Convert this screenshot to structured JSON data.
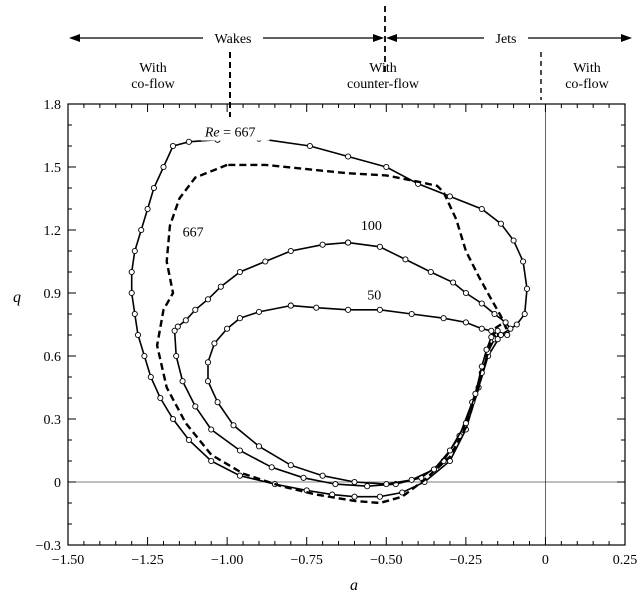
{
  "chart_data": {
    "type": "line",
    "xlabel": "a",
    "ylabel": "q",
    "xlim": [
      -1.5,
      0.25
    ],
    "ylim": [
      -0.3,
      1.8
    ],
    "xticks": [
      "−1.50",
      "−1.25",
      "−1.00",
      "−0.75",
      "−0.50",
      "−0.25",
      "0",
      "0.25"
    ],
    "yticks": [
      "−0.3",
      "0",
      "0.3",
      "0.6",
      "0.9",
      "1.2",
      "1.5",
      "1.8"
    ],
    "x_tick_values": [
      -1.5,
      -1.25,
      -1.0,
      -0.75,
      -0.5,
      -0.25,
      0,
      0.25
    ],
    "y_tick_values": [
      -0.3,
      0,
      0.3,
      0.6,
      0.9,
      1.2,
      1.5,
      1.8
    ],
    "reference_lines": {
      "x": 0,
      "y": 0
    },
    "regions": {
      "wakes": "Wakes",
      "jets": "Jets",
      "left": [
        "With",
        "co-flow"
      ],
      "middle": [
        "With",
        "counter-flow"
      ],
      "right": [
        "With",
        "co-flow"
      ]
    },
    "region_bounds": {
      "wakes": [
        -1.5,
        -0.5
      ],
      "jets": [
        -0.5,
        0.25
      ],
      "left_divider": -1.0,
      "jets_divider": -0.5,
      "right_divider": 0
    },
    "annotations": [
      {
        "text": "Re = 667",
        "x": -1.07,
        "y": 1.645
      },
      {
        "text": "667",
        "x": -1.14,
        "y": 1.17
      },
      {
        "text": "100",
        "x": -0.58,
        "y": 1.2
      },
      {
        "text": "50",
        "x": -0.56,
        "y": 0.87
      }
    ],
    "series": [
      {
        "style": "solid-markers",
        "points": [
          [
            -1.03,
            1.63
          ],
          [
            -1.12,
            1.62
          ],
          [
            -1.17,
            1.6
          ],
          [
            -1.2,
            1.5
          ],
          [
            -1.23,
            1.4
          ],
          [
            -1.25,
            1.3
          ],
          [
            -1.27,
            1.2
          ],
          [
            -1.29,
            1.1
          ],
          [
            -1.3,
            1.0
          ],
          [
            -1.3,
            0.9
          ],
          [
            -1.29,
            0.8
          ],
          [
            -1.28,
            0.7
          ],
          [
            -1.26,
            0.6
          ],
          [
            -1.24,
            0.5
          ],
          [
            -1.21,
            0.4
          ],
          [
            -1.17,
            0.3
          ],
          [
            -1.12,
            0.2
          ],
          [
            -1.05,
            0.1
          ],
          [
            -0.96,
            0.03
          ],
          [
            -0.85,
            -0.01
          ],
          [
            -0.75,
            -0.04
          ],
          [
            -0.67,
            -0.06
          ],
          [
            -0.6,
            -0.07
          ],
          [
            -0.52,
            -0.07
          ],
          [
            -0.45,
            -0.05
          ],
          [
            -0.38,
            0.0
          ],
          [
            -0.3,
            0.1
          ],
          [
            -0.25,
            0.25
          ],
          [
            -0.21,
            0.45
          ],
          [
            -0.18,
            0.6
          ],
          [
            -0.14,
            0.7
          ],
          [
            -0.09,
            0.75
          ],
          [
            -0.065,
            0.8
          ],
          [
            -0.058,
            0.92
          ],
          [
            -0.07,
            1.05
          ],
          [
            -0.1,
            1.15
          ],
          [
            -0.14,
            1.23
          ],
          [
            -0.2,
            1.3
          ],
          [
            -0.3,
            1.36
          ],
          [
            -0.4,
            1.42
          ],
          [
            -0.5,
            1.5
          ],
          [
            -0.62,
            1.55
          ],
          [
            -0.74,
            1.6
          ],
          [
            -0.9,
            1.635
          ],
          [
            -1.03,
            1.63
          ]
        ]
      },
      {
        "style": "dashed",
        "points": [
          [
            -1.0,
            1.51
          ],
          [
            -1.05,
            1.48
          ],
          [
            -1.1,
            1.45
          ],
          [
            -1.15,
            1.35
          ],
          [
            -1.18,
            1.22
          ],
          [
            -1.19,
            1.05
          ],
          [
            -1.17,
            0.9
          ],
          [
            -1.2,
            0.82
          ],
          [
            -1.22,
            0.65
          ],
          [
            -1.19,
            0.45
          ],
          [
            -1.13,
            0.28
          ],
          [
            -1.05,
            0.13
          ],
          [
            -0.95,
            0.04
          ],
          [
            -0.83,
            -0.02
          ],
          [
            -0.72,
            -0.06
          ],
          [
            -0.6,
            -0.09
          ],
          [
            -0.52,
            -0.1
          ],
          [
            -0.45,
            -0.07
          ],
          [
            -0.38,
            0.01
          ],
          [
            -0.3,
            0.12
          ],
          [
            -0.25,
            0.26
          ],
          [
            -0.21,
            0.45
          ],
          [
            -0.18,
            0.62
          ],
          [
            -0.16,
            0.73
          ],
          [
            -0.13,
            0.76
          ],
          [
            -0.12,
            0.72
          ],
          [
            -0.14,
            0.79
          ],
          [
            -0.17,
            0.87
          ],
          [
            -0.21,
            0.98
          ],
          [
            -0.25,
            1.1
          ],
          [
            -0.28,
            1.25
          ],
          [
            -0.32,
            1.38
          ],
          [
            -0.34,
            1.41
          ],
          [
            -0.4,
            1.43
          ],
          [
            -0.5,
            1.46
          ],
          [
            -0.62,
            1.47
          ],
          [
            -0.75,
            1.49
          ],
          [
            -0.88,
            1.51
          ],
          [
            -1.0,
            1.51
          ]
        ]
      },
      {
        "style": "solid-markers",
        "points": [
          [
            -0.62,
            1.14
          ],
          [
            -0.7,
            1.13
          ],
          [
            -0.8,
            1.1
          ],
          [
            -0.88,
            1.05
          ],
          [
            -0.96,
            1.0
          ],
          [
            -1.02,
            0.93
          ],
          [
            -1.06,
            0.87
          ],
          [
            -1.1,
            0.82
          ],
          [
            -1.13,
            0.77
          ],
          [
            -1.155,
            0.74
          ],
          [
            -1.165,
            0.72
          ],
          [
            -1.16,
            0.6
          ],
          [
            -1.14,
            0.48
          ],
          [
            -1.1,
            0.36
          ],
          [
            -1.05,
            0.25
          ],
          [
            -0.96,
            0.15
          ],
          [
            -0.86,
            0.07
          ],
          [
            -0.76,
            0.02
          ],
          [
            -0.66,
            -0.01
          ],
          [
            -0.56,
            -0.02
          ],
          [
            -0.47,
            -0.01
          ],
          [
            -0.39,
            0.02
          ],
          [
            -0.32,
            0.1
          ],
          [
            -0.27,
            0.22
          ],
          [
            -0.23,
            0.38
          ],
          [
            -0.2,
            0.52
          ],
          [
            -0.18,
            0.62
          ],
          [
            -0.16,
            0.68
          ],
          [
            -0.14,
            0.7
          ],
          [
            -0.12,
            0.7
          ],
          [
            -0.11,
            0.73
          ],
          [
            -0.125,
            0.76
          ],
          [
            -0.16,
            0.8
          ],
          [
            -0.2,
            0.85
          ],
          [
            -0.25,
            0.9
          ],
          [
            -0.29,
            0.95
          ],
          [
            -0.36,
            1.0
          ],
          [
            -0.44,
            1.06
          ],
          [
            -0.52,
            1.12
          ],
          [
            -0.62,
            1.14
          ]
        ]
      },
      {
        "style": "solid-markers",
        "points": [
          [
            -0.8,
            0.84
          ],
          [
            -0.9,
            0.81
          ],
          [
            -0.96,
            0.78
          ],
          [
            -1.0,
            0.73
          ],
          [
            -1.04,
            0.66
          ],
          [
            -1.06,
            0.57
          ],
          [
            -1.06,
            0.48
          ],
          [
            -1.03,
            0.38
          ],
          [
            -0.98,
            0.27
          ],
          [
            -0.9,
            0.17
          ],
          [
            -0.8,
            0.08
          ],
          [
            -0.7,
            0.03
          ],
          [
            -0.6,
            0.0
          ],
          [
            -0.5,
            -0.01
          ],
          [
            -0.42,
            0.01
          ],
          [
            -0.35,
            0.06
          ],
          [
            -0.3,
            0.15
          ],
          [
            -0.25,
            0.28
          ],
          [
            -0.22,
            0.42
          ],
          [
            -0.2,
            0.55
          ],
          [
            -0.185,
            0.63
          ],
          [
            -0.17,
            0.69
          ],
          [
            -0.15,
            0.72
          ],
          [
            -0.15,
            0.68
          ],
          [
            -0.17,
            0.72
          ],
          [
            -0.2,
            0.73
          ],
          [
            -0.25,
            0.76
          ],
          [
            -0.32,
            0.78
          ],
          [
            -0.42,
            0.8
          ],
          [
            -0.52,
            0.82
          ],
          [
            -0.62,
            0.82
          ],
          [
            -0.72,
            0.83
          ],
          [
            -0.8,
            0.84
          ]
        ]
      }
    ]
  }
}
